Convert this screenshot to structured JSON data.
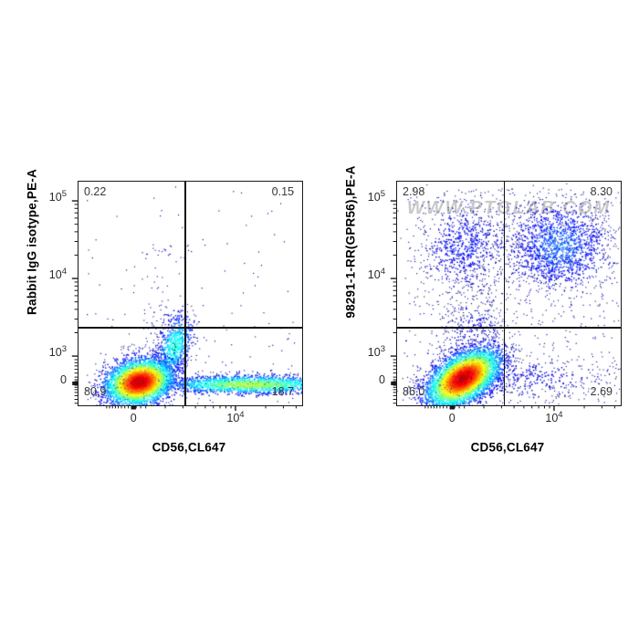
{
  "colors": {
    "plot_border": "#1a1a1a",
    "gate_line": "#111111",
    "watermark": "#c9c9c9",
    "quadrant_label": "#3a3a3a",
    "density_scale": [
      "#000080",
      "#0000ff",
      "#00ffff",
      "#00ff00",
      "#ffff00",
      "#ff7f00",
      "#ff0000"
    ]
  },
  "chart_data": [
    {
      "type": "scatter",
      "flavor": "flow-cytometry-density-dot-plot",
      "xlabel": "CD56,CL647",
      "ylabel": "Rabbit IgG isotype,PE-A",
      "x_scale": "biexponential",
      "y_scale": "biexponential",
      "x_ticks": [
        {
          "base": "0",
          "exp": "",
          "frac": 0.25
        },
        {
          "base": "10",
          "exp": "4",
          "frac": 0.706
        }
      ],
      "y_ticks": [
        {
          "base": "10",
          "exp": "5",
          "frac": 0.09
        },
        {
          "base": "10",
          "exp": "4",
          "frac": 0.437
        },
        {
          "base": "10",
          "exp": "3",
          "frac": 0.784
        },
        {
          "base": "0",
          "exp": "",
          "frac": 0.906
        }
      ],
      "gate": {
        "x_frac": 0.478,
        "y_frac": 0.653
      },
      "quadrants": {
        "top_left": "0.22",
        "top_right": "0.15",
        "bottom_left": "80.9",
        "bottom_right": "18.7"
      },
      "watermark": "",
      "populations": [
        {
          "kind": "uniform",
          "x0": 0.03,
          "x1": 0.97,
          "y0": 0.02,
          "y1": 0.64,
          "count": 60,
          "seed": 11
        },
        {
          "kind": "uniform",
          "x0": 0.02,
          "x1": 0.98,
          "y0": 0.64,
          "y1": 0.99,
          "count": 70,
          "seed": 12
        },
        {
          "kind": "gauss",
          "cx": 0.35,
          "cy": 0.6,
          "sx": 0.05,
          "sy": 0.11,
          "corr": 0,
          "count": 80,
          "peak": 0.06,
          "seed": 13
        },
        {
          "kind": "gauss",
          "cx": 0.36,
          "cy": 0.305,
          "sx": 0.055,
          "sy": 0.02,
          "corr": 0,
          "count": 18,
          "peak": 0.05,
          "seed": 14
        },
        {
          "kind": "gauss",
          "cx": 0.425,
          "cy": 0.735,
          "sx": 0.042,
          "sy": 0.075,
          "corr": -0.45,
          "count": 750,
          "peak": 0.42,
          "seed": 15
        },
        {
          "kind": "gauss",
          "cx": 0.76,
          "cy": 0.905,
          "sx": 0.205,
          "sy": 0.021,
          "corr": 0,
          "count": 2100,
          "peak": 0.55,
          "seed": 16
        },
        {
          "kind": "gauss",
          "cx": 0.27,
          "cy": 0.894,
          "sx": 0.076,
          "sy": 0.052,
          "corr": -0.2,
          "count": 4300,
          "peak": 0.93,
          "seed": 17
        }
      ]
    },
    {
      "type": "scatter",
      "flavor": "flow-cytometry-density-dot-plot",
      "xlabel": "CD56,CL647",
      "ylabel": "98291-1-RR(GPR56),PE-A",
      "x_scale": "biexponential",
      "y_scale": "biexponential",
      "x_ticks": [
        {
          "base": "0",
          "exp": "",
          "frac": 0.25
        },
        {
          "base": "10",
          "exp": "4",
          "frac": 0.706
        }
      ],
      "y_ticks": [
        {
          "base": "10",
          "exp": "5",
          "frac": 0.09
        },
        {
          "base": "10",
          "exp": "4",
          "frac": 0.437
        },
        {
          "base": "10",
          "exp": "3",
          "frac": 0.784
        },
        {
          "base": "0",
          "exp": "",
          "frac": 0.906
        }
      ],
      "gate": {
        "x_frac": 0.48,
        "y_frac": 0.653
      },
      "quadrants": {
        "top_left": "2.98",
        "top_right": "8.30",
        "bottom_left": "86.0",
        "bottom_right": "2.69"
      },
      "watermark": "WWW.PTGLAB.COM",
      "populations": [
        {
          "kind": "uniform",
          "x0": 0.04,
          "x1": 0.99,
          "y0": 0.03,
          "y1": 0.64,
          "count": 430,
          "seed": 21
        },
        {
          "kind": "uniform",
          "x0": 0.02,
          "x1": 0.98,
          "y0": 0.64,
          "y1": 0.99,
          "count": 130,
          "seed": 22
        },
        {
          "kind": "gauss",
          "cx": 0.3,
          "cy": 0.29,
          "sx": 0.1,
          "sy": 0.105,
          "corr": 0,
          "count": 700,
          "peak": 0.14,
          "seed": 23
        },
        {
          "kind": "gauss",
          "cx": 0.725,
          "cy": 0.285,
          "sx": 0.115,
          "sy": 0.1,
          "corr": 0,
          "count": 1400,
          "peak": 0.22,
          "seed": 24
        },
        {
          "kind": "gauss",
          "cx": 0.55,
          "cy": 0.33,
          "sx": 0.17,
          "sy": 0.14,
          "corr": 0,
          "count": 260,
          "peak": 0.07,
          "seed": 25
        },
        {
          "kind": "gauss",
          "cx": 0.33,
          "cy": 0.665,
          "sx": 0.09,
          "sy": 0.075,
          "corr": -0.2,
          "count": 330,
          "peak": 0.09,
          "seed": 26
        },
        {
          "kind": "gauss",
          "cx": 0.6,
          "cy": 0.875,
          "sx": 0.21,
          "sy": 0.055,
          "corr": 0,
          "count": 430,
          "peak": 0.1,
          "seed": 27
        },
        {
          "kind": "gauss",
          "cx": 0.294,
          "cy": 0.876,
          "sx": 0.082,
          "sy": 0.066,
          "corr": -0.5,
          "count": 5200,
          "peak": 0.93,
          "seed": 28
        }
      ]
    }
  ]
}
